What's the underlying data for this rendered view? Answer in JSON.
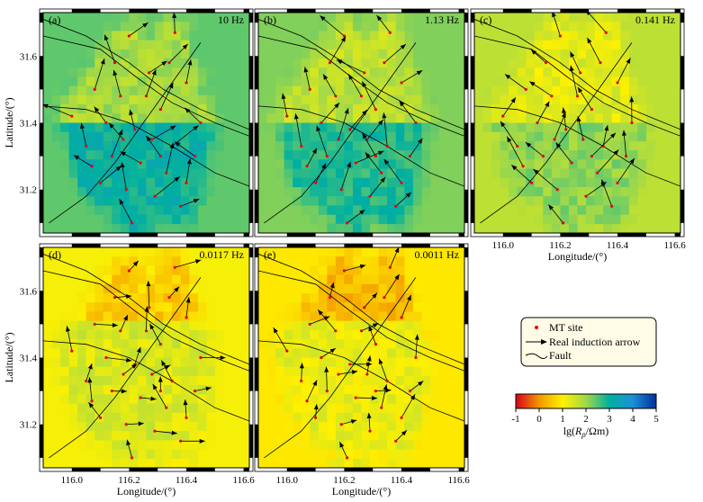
{
  "chart_data": {
    "type": "heatmap",
    "xlim": [
      115.9,
      116.62
    ],
    "ylim": [
      31.07,
      31.73
    ],
    "x_ticks": [
      "116.0",
      "116.2",
      "116.4",
      "116.6"
    ],
    "y_ticks": [
      "31.2",
      "31.4",
      "31.6"
    ],
    "xlabel": "Longitude/(°)",
    "ylabel": "Latitude/(°)",
    "panels": [
      {
        "letter": "(a)",
        "frequency": "10 Hz",
        "base_log_rho": 2.4
      },
      {
        "letter": "(b)",
        "frequency": "1.13 Hz",
        "base_log_rho": 2.2
      },
      {
        "letter": "(c)",
        "frequency": "0.141 Hz",
        "base_log_rho": 1.7
      },
      {
        "letter": "(d)",
        "frequency": "0.0117 Hz",
        "base_log_rho": 1.1
      },
      {
        "letter": "(e)",
        "frequency": "0.0011 Hz",
        "base_log_rho": 0.9
      }
    ],
    "colorbar": {
      "ticks": [
        "-1",
        "0",
        "1",
        "2",
        "3",
        "4",
        "5"
      ],
      "range": [
        -1,
        5
      ],
      "label": "lg(Rρ/Ωm)",
      "colors": [
        "#d7001a",
        "#f39800",
        "#fff100",
        "#a0d84a",
        "#00b0a0",
        "#1f8fd6",
        "#002f9c"
      ]
    },
    "legend": {
      "items": [
        "MT site",
        "Real induction arrow",
        "Fault"
      ],
      "position": "right"
    },
    "mt_sites": [
      [
        116.2,
        31.66
      ],
      [
        116.36,
        31.67
      ],
      [
        116.4,
        31.52
      ],
      [
        116.27,
        31.55
      ],
      [
        116.17,
        31.48
      ],
      [
        116.08,
        31.5
      ],
      [
        116.31,
        31.44
      ],
      [
        116.12,
        31.4
      ],
      [
        116.22,
        31.38
      ],
      [
        116.28,
        31.35
      ],
      [
        116.35,
        31.33
      ],
      [
        116.05,
        31.33
      ],
      [
        116.14,
        31.3
      ],
      [
        116.24,
        31.28
      ],
      [
        116.33,
        31.25
      ],
      [
        116.4,
        31.22
      ],
      [
        116.1,
        31.22
      ],
      [
        116.19,
        31.2
      ],
      [
        116.29,
        31.18
      ],
      [
        116.38,
        31.15
      ],
      [
        116.21,
        31.1
      ],
      [
        116.45,
        31.4
      ],
      [
        116.0,
        31.42
      ],
      [
        116.26,
        31.48
      ],
      [
        116.34,
        31.58
      ],
      [
        116.15,
        31.58
      ],
      [
        116.43,
        31.3
      ],
      [
        116.07,
        31.27
      ],
      [
        116.31,
        31.3
      ],
      [
        116.18,
        31.35
      ]
    ]
  },
  "legend_labels": {
    "site": "MT site",
    "arrow": "Real induction arrow",
    "fault": "Fault"
  },
  "colorbar_label": {
    "prefix": "lg(",
    "sym": "R",
    "sub": "ρ",
    "suffix": "/Ωm)"
  }
}
